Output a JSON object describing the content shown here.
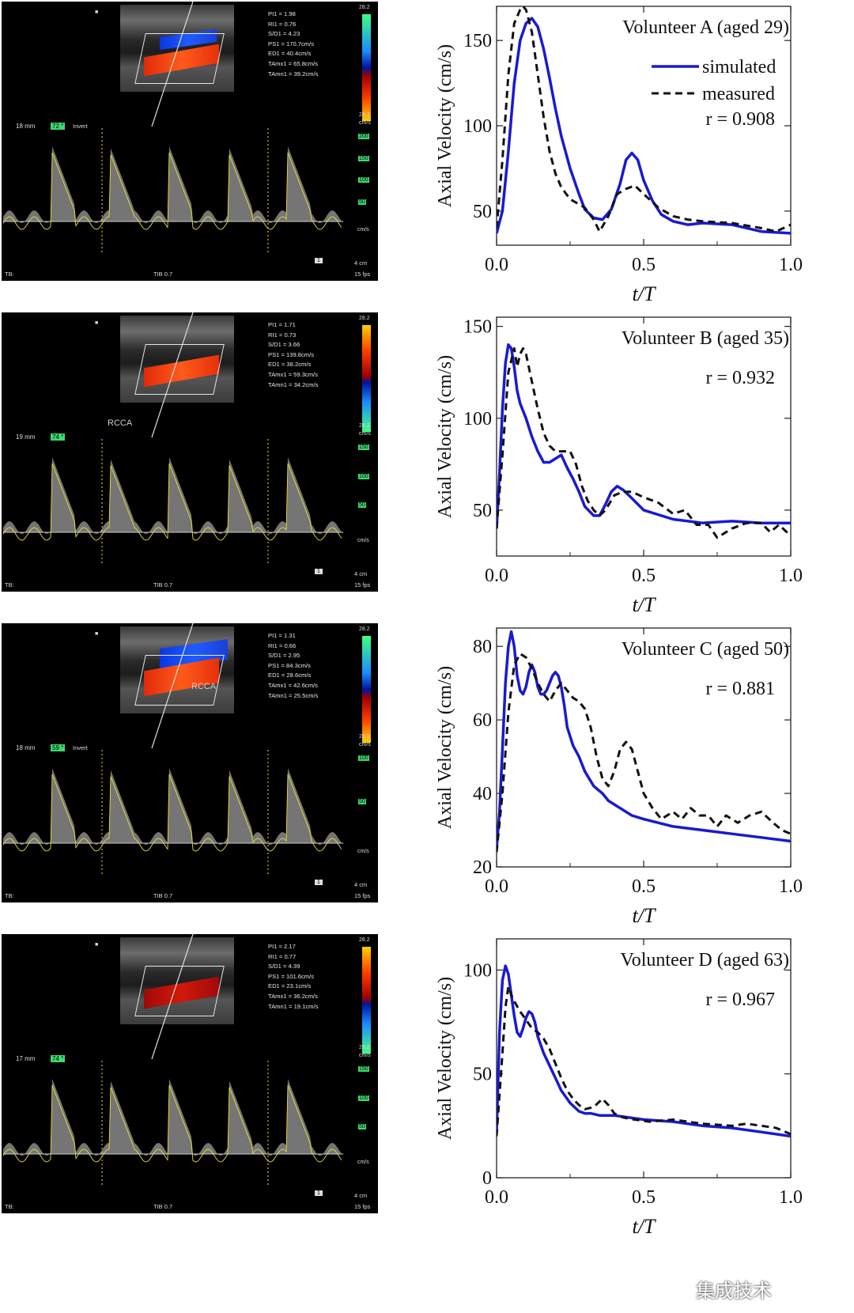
{
  "ultrasound_panels": [
    {
      "readout": [
        "PI1 = 1.98",
        "RI1 = 0.76",
        "S/D1 = 4.23",
        "PS1 = 170.7cm/s",
        "ED1 = 40.4cm/s",
        "TAmx1 = 65.8cm/s",
        "TAmn1 = 39.2cm/s"
      ],
      "depth": "18 mm",
      "angle": "72 °",
      "invert": "Invert",
      "vessel_label": "",
      "scale_top": "28.2",
      "scale_bottom": "28.2",
      "scale_unit": "cm/s",
      "velocity_scale": [
        "200",
        "150",
        "100",
        "50"
      ],
      "velocity_unit": "cm/s",
      "tb": "TB:",
      "tib": "TIB 0.7",
      "fps": "15 fps",
      "depth_cm": "4 cm",
      "box_num": "1"
    },
    {
      "readout": [
        "PI1 = 1.71",
        "RI1 = 0.73",
        "S/D1 = 3.66",
        "PS1 = 139.8cm/s",
        "ED1 = 38.2cm/s",
        "TAmx1 = 59.3cm/s",
        "TAmn1 = 34.2cm/s"
      ],
      "depth": "19 mm",
      "angle": "74 °",
      "invert": "",
      "vessel_label": "RCCA",
      "scale_top": "28.2",
      "scale_bottom": "28.2",
      "scale_unit": "cm/s",
      "velocity_scale": [
        "150",
        "100",
        "50"
      ],
      "velocity_unit": "cm/s",
      "tb": "TB:",
      "tib": "TIB 0.7",
      "fps": "15 fps",
      "depth_cm": "4 cm",
      "box_num": "1"
    },
    {
      "readout": [
        "PI1 = 1.31",
        "RI1 = 0.66",
        "S/D1 = 2.95",
        "PS1 = 84.3cm/s",
        "ED1 = 28.6cm/s",
        "TAmx1 = 42.6cm/s",
        "TAmn1 = 25.5cm/s"
      ],
      "depth": "18 mm",
      "angle": "59 °",
      "invert": "Invert",
      "vessel_label": "RCCA",
      "scale_top": "28.2",
      "scale_bottom": "28.2",
      "scale_unit": "cm/s",
      "velocity_scale": [
        "100",
        "50"
      ],
      "velocity_unit": "cm/s",
      "tb": "TB:",
      "tib": "TIB 0.7",
      "fps": "15 fps",
      "depth_cm": "4 cm",
      "box_num": "1"
    },
    {
      "readout": [
        "PI1 = 2.17",
        "RI1 = 0.77",
        "S/D1 = 4.39",
        "PS1 = 101.6cm/s",
        "ED1 = 23.1cm/s",
        "TAmx1 = 36.2cm/s",
        "TAmn1 = 19.1cm/s"
      ],
      "depth": "17 mm",
      "angle": "74 °",
      "invert": "",
      "vessel_label": "",
      "scale_top": "28.2",
      "scale_bottom": "28.2",
      "scale_unit": "cm/s",
      "velocity_scale": [
        "150",
        "100",
        "50"
      ],
      "velocity_unit": "cm/s",
      "tb": "TB:",
      "tib": "TIB 0.7",
      "fps": "15 fps",
      "depth_cm": "4 cm",
      "box_num": "1"
    }
  ],
  "chart_data": [
    {
      "type": "line",
      "title": "Volunteer A (aged 29)",
      "xlabel": "t/T",
      "ylabel": "Axial Velocity (cm/s)",
      "xlim": [
        0,
        1
      ],
      "ylim": [
        30,
        170
      ],
      "xticks": [
        0,
        0.5,
        1
      ],
      "xtick_labels": [
        "0.0",
        "0.5",
        "1.0"
      ],
      "yticks": [
        50,
        100,
        150
      ],
      "ytick_labels": [
        "50",
        "100",
        "150"
      ],
      "legend": {
        "placement": "top-right",
        "entries": [
          "simulated",
          "measured"
        ]
      },
      "correlation": "r = 0.908",
      "series": [
        {
          "name": "simulated",
          "style": "solid",
          "color": "#1a1ad0",
          "x": [
            0,
            0.02,
            0.04,
            0.06,
            0.08,
            0.1,
            0.12,
            0.14,
            0.16,
            0.18,
            0.2,
            0.22,
            0.25,
            0.28,
            0.3,
            0.33,
            0.36,
            0.39,
            0.42,
            0.44,
            0.46,
            0.48,
            0.5,
            0.53,
            0.56,
            0.6,
            0.65,
            0.7,
            0.8,
            0.9,
            1.0
          ],
          "y": [
            37,
            50,
            85,
            125,
            150,
            160,
            163,
            158,
            145,
            128,
            110,
            94,
            75,
            60,
            51,
            46,
            45,
            51,
            66,
            80,
            84,
            80,
            68,
            56,
            48,
            44,
            42,
            43,
            42,
            38,
            37
          ]
        },
        {
          "name": "measured",
          "style": "dashed",
          "color": "#111111",
          "x": [
            0,
            0.02,
            0.04,
            0.06,
            0.08,
            0.09,
            0.1,
            0.12,
            0.14,
            0.16,
            0.18,
            0.2,
            0.22,
            0.25,
            0.28,
            0.3,
            0.33,
            0.35,
            0.38,
            0.41,
            0.44,
            0.47,
            0.5,
            0.55,
            0.6,
            0.65,
            0.7,
            0.8,
            0.9,
            0.95,
            1.0
          ],
          "y": [
            40,
            80,
            130,
            160,
            168,
            170,
            168,
            155,
            130,
            105,
            85,
            72,
            64,
            57,
            54,
            52,
            45,
            38,
            47,
            60,
            63,
            65,
            60,
            52,
            47,
            45,
            44,
            43,
            40,
            38,
            42
          ]
        }
      ]
    },
    {
      "type": "line",
      "title": "Volunteer B (aged 35)",
      "xlabel": "t/T",
      "ylabel": "Axial Velocity (cm/s)",
      "xlim": [
        0,
        1
      ],
      "ylim": [
        25,
        155
      ],
      "xticks": [
        0,
        0.5,
        1
      ],
      "xtick_labels": [
        "0.0",
        "0.5",
        "1.0"
      ],
      "yticks": [
        50,
        100,
        150
      ],
      "ytick_labels": [
        "50",
        "100",
        "150"
      ],
      "correlation": "r = 0.932",
      "series": [
        {
          "name": "simulated",
          "style": "solid",
          "color": "#1a1ad0",
          "x": [
            0,
            0.01,
            0.02,
            0.03,
            0.04,
            0.05,
            0.06,
            0.07,
            0.08,
            0.1,
            0.12,
            0.14,
            0.16,
            0.18,
            0.2,
            0.22,
            0.24,
            0.26,
            0.28,
            0.3,
            0.33,
            0.35,
            0.37,
            0.39,
            0.41,
            0.43,
            0.45,
            0.5,
            0.6,
            0.7,
            0.8,
            0.9,
            1.0
          ],
          "y": [
            40,
            70,
            105,
            130,
            140,
            138,
            128,
            115,
            108,
            100,
            90,
            82,
            76,
            76,
            78,
            80,
            73,
            67,
            60,
            52,
            47,
            47,
            53,
            60,
            63,
            61,
            58,
            50,
            45,
            43,
            44,
            43,
            43
          ]
        },
        {
          "name": "measured",
          "style": "dashed",
          "color": "#111111",
          "x": [
            0,
            0.02,
            0.04,
            0.06,
            0.07,
            0.08,
            0.09,
            0.1,
            0.12,
            0.14,
            0.16,
            0.18,
            0.2,
            0.22,
            0.25,
            0.27,
            0.29,
            0.31,
            0.33,
            0.35,
            0.37,
            0.4,
            0.43,
            0.46,
            0.5,
            0.55,
            0.6,
            0.64,
            0.68,
            0.72,
            0.75,
            0.8,
            0.85,
            0.9,
            0.93,
            0.96,
            1.0
          ],
          "y": [
            40,
            80,
            125,
            138,
            128,
            135,
            138,
            135,
            120,
            105,
            92,
            85,
            82,
            82,
            82,
            75,
            63,
            55,
            50,
            47,
            50,
            58,
            60,
            60,
            57,
            54,
            48,
            50,
            42,
            42,
            35,
            40,
            43,
            43,
            38,
            42,
            36
          ]
        }
      ]
    },
    {
      "type": "line",
      "title": "Volunteer C (aged 50)",
      "xlabel": "t/T",
      "ylabel": "Axial Velocity (cm/s)",
      "xlim": [
        0,
        1
      ],
      "ylim": [
        20,
        85
      ],
      "xticks": [
        0,
        0.5,
        1
      ],
      "xtick_labels": [
        "0.0",
        "0.5",
        "1.0"
      ],
      "yticks": [
        20,
        40,
        60,
        80
      ],
      "ytick_labels": [
        "20",
        "40",
        "60",
        "80"
      ],
      "correlation": "r = 0.881",
      "series": [
        {
          "name": "simulated",
          "style": "solid",
          "color": "#1a1ad0",
          "x": [
            0,
            0.01,
            0.02,
            0.03,
            0.04,
            0.05,
            0.06,
            0.07,
            0.08,
            0.09,
            0.1,
            0.11,
            0.12,
            0.13,
            0.14,
            0.15,
            0.16,
            0.17,
            0.18,
            0.19,
            0.2,
            0.21,
            0.22,
            0.23,
            0.24,
            0.26,
            0.28,
            0.3,
            0.33,
            0.36,
            0.38,
            0.42,
            0.46,
            0.5,
            0.6,
            0.7,
            0.8,
            0.9,
            1.0
          ],
          "y": [
            25,
            35,
            52,
            70,
            80,
            84,
            80,
            72,
            68,
            67,
            69,
            73,
            75,
            73,
            69,
            67,
            67,
            68,
            70,
            72,
            73,
            72,
            69,
            64,
            58,
            53,
            50,
            46,
            42,
            40,
            38,
            36,
            34,
            33,
            31,
            30,
            29,
            28,
            27
          ]
        },
        {
          "name": "measured",
          "style": "dashed",
          "color": "#111111",
          "x": [
            0,
            0.02,
            0.04,
            0.06,
            0.08,
            0.1,
            0.12,
            0.14,
            0.16,
            0.18,
            0.2,
            0.22,
            0.24,
            0.26,
            0.28,
            0.3,
            0.32,
            0.34,
            0.36,
            0.38,
            0.4,
            0.42,
            0.44,
            0.46,
            0.48,
            0.5,
            0.53,
            0.56,
            0.6,
            0.63,
            0.66,
            0.69,
            0.72,
            0.75,
            0.78,
            0.82,
            0.86,
            0.9,
            0.94,
            0.97,
            1.0
          ],
          "y": [
            24,
            40,
            62,
            75,
            78,
            77,
            74,
            70,
            67,
            65,
            68,
            70,
            68,
            66,
            65,
            63,
            58,
            50,
            44,
            42,
            46,
            52,
            54,
            52,
            46,
            40,
            36,
            33,
            35,
            33,
            36,
            34,
            34,
            31,
            34,
            32,
            34,
            35,
            32,
            30,
            29
          ]
        }
      ]
    },
    {
      "type": "line",
      "title": "Volunteer D (aged 63)",
      "xlabel": "t/T",
      "ylabel": "Axial Velocity (cm/s)",
      "xlim": [
        0,
        1
      ],
      "ylim": [
        0,
        115
      ],
      "xticks": [
        0,
        0.5,
        1
      ],
      "xtick_labels": [
        "0.0",
        "0.5",
        "1.0"
      ],
      "yticks": [
        0,
        50,
        100
      ],
      "ytick_labels": [
        "0",
        "50",
        "100"
      ],
      "correlation": "r = 0.967",
      "series": [
        {
          "name": "simulated",
          "style": "solid",
          "color": "#1a1ad0",
          "x": [
            0,
            0.01,
            0.02,
            0.03,
            0.04,
            0.05,
            0.06,
            0.07,
            0.08,
            0.09,
            0.1,
            0.11,
            0.12,
            0.13,
            0.14,
            0.16,
            0.18,
            0.2,
            0.22,
            0.25,
            0.28,
            0.3,
            0.32,
            0.35,
            0.4,
            0.5,
            0.6,
            0.7,
            0.8,
            0.9,
            1.0
          ],
          "y": [
            22,
            70,
            95,
            102,
            98,
            88,
            78,
            70,
            68,
            72,
            77,
            80,
            79,
            75,
            68,
            60,
            54,
            48,
            42,
            36,
            32,
            31,
            31,
            30,
            30,
            28,
            27,
            25,
            24,
            22,
            20
          ]
        },
        {
          "name": "measured",
          "style": "dashed",
          "color": "#111111",
          "x": [
            0,
            0.02,
            0.03,
            0.04,
            0.05,
            0.06,
            0.08,
            0.1,
            0.12,
            0.14,
            0.16,
            0.18,
            0.2,
            0.22,
            0.24,
            0.26,
            0.28,
            0.3,
            0.33,
            0.36,
            0.38,
            0.4,
            0.43,
            0.47,
            0.52,
            0.6,
            0.7,
            0.8,
            0.85,
            0.9,
            0.95,
            1.0
          ],
          "y": [
            20,
            60,
            82,
            92,
            88,
            85,
            80,
            76,
            72,
            70,
            67,
            62,
            55,
            48,
            42,
            38,
            35,
            33,
            34,
            38,
            35,
            31,
            29,
            28,
            27,
            28,
            26,
            25,
            26,
            25,
            24,
            21
          ]
        }
      ]
    }
  ],
  "watermark": "集成技术"
}
